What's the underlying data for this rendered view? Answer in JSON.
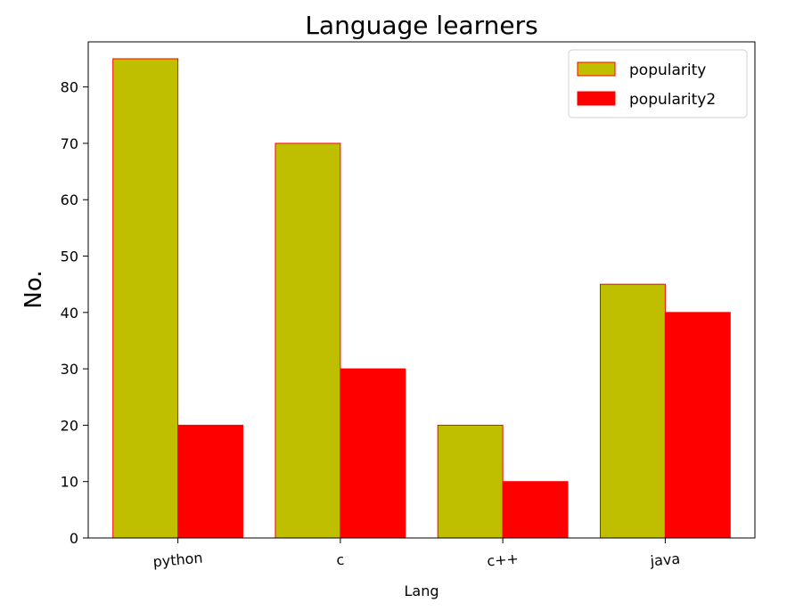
{
  "chart_data": {
    "type": "bar",
    "title": "Language learners",
    "xlabel": "Lang",
    "ylabel": "No.",
    "categories": [
      "python",
      "c",
      "c++",
      "java"
    ],
    "ylim": [
      0,
      88
    ],
    "yticks": [
      0,
      10,
      20,
      30,
      40,
      50,
      60,
      70,
      80
    ],
    "grid": false,
    "legend": "top-right",
    "series": [
      {
        "name": "popularity",
        "values": [
          85,
          70,
          20,
          45
        ],
        "color": "#bfbf00",
        "edge_color": "#ff0000"
      },
      {
        "name": "popularity2",
        "values": [
          20,
          30,
          10,
          40
        ],
        "color": "#ff0000",
        "edge_color": "#ff0000"
      }
    ]
  }
}
